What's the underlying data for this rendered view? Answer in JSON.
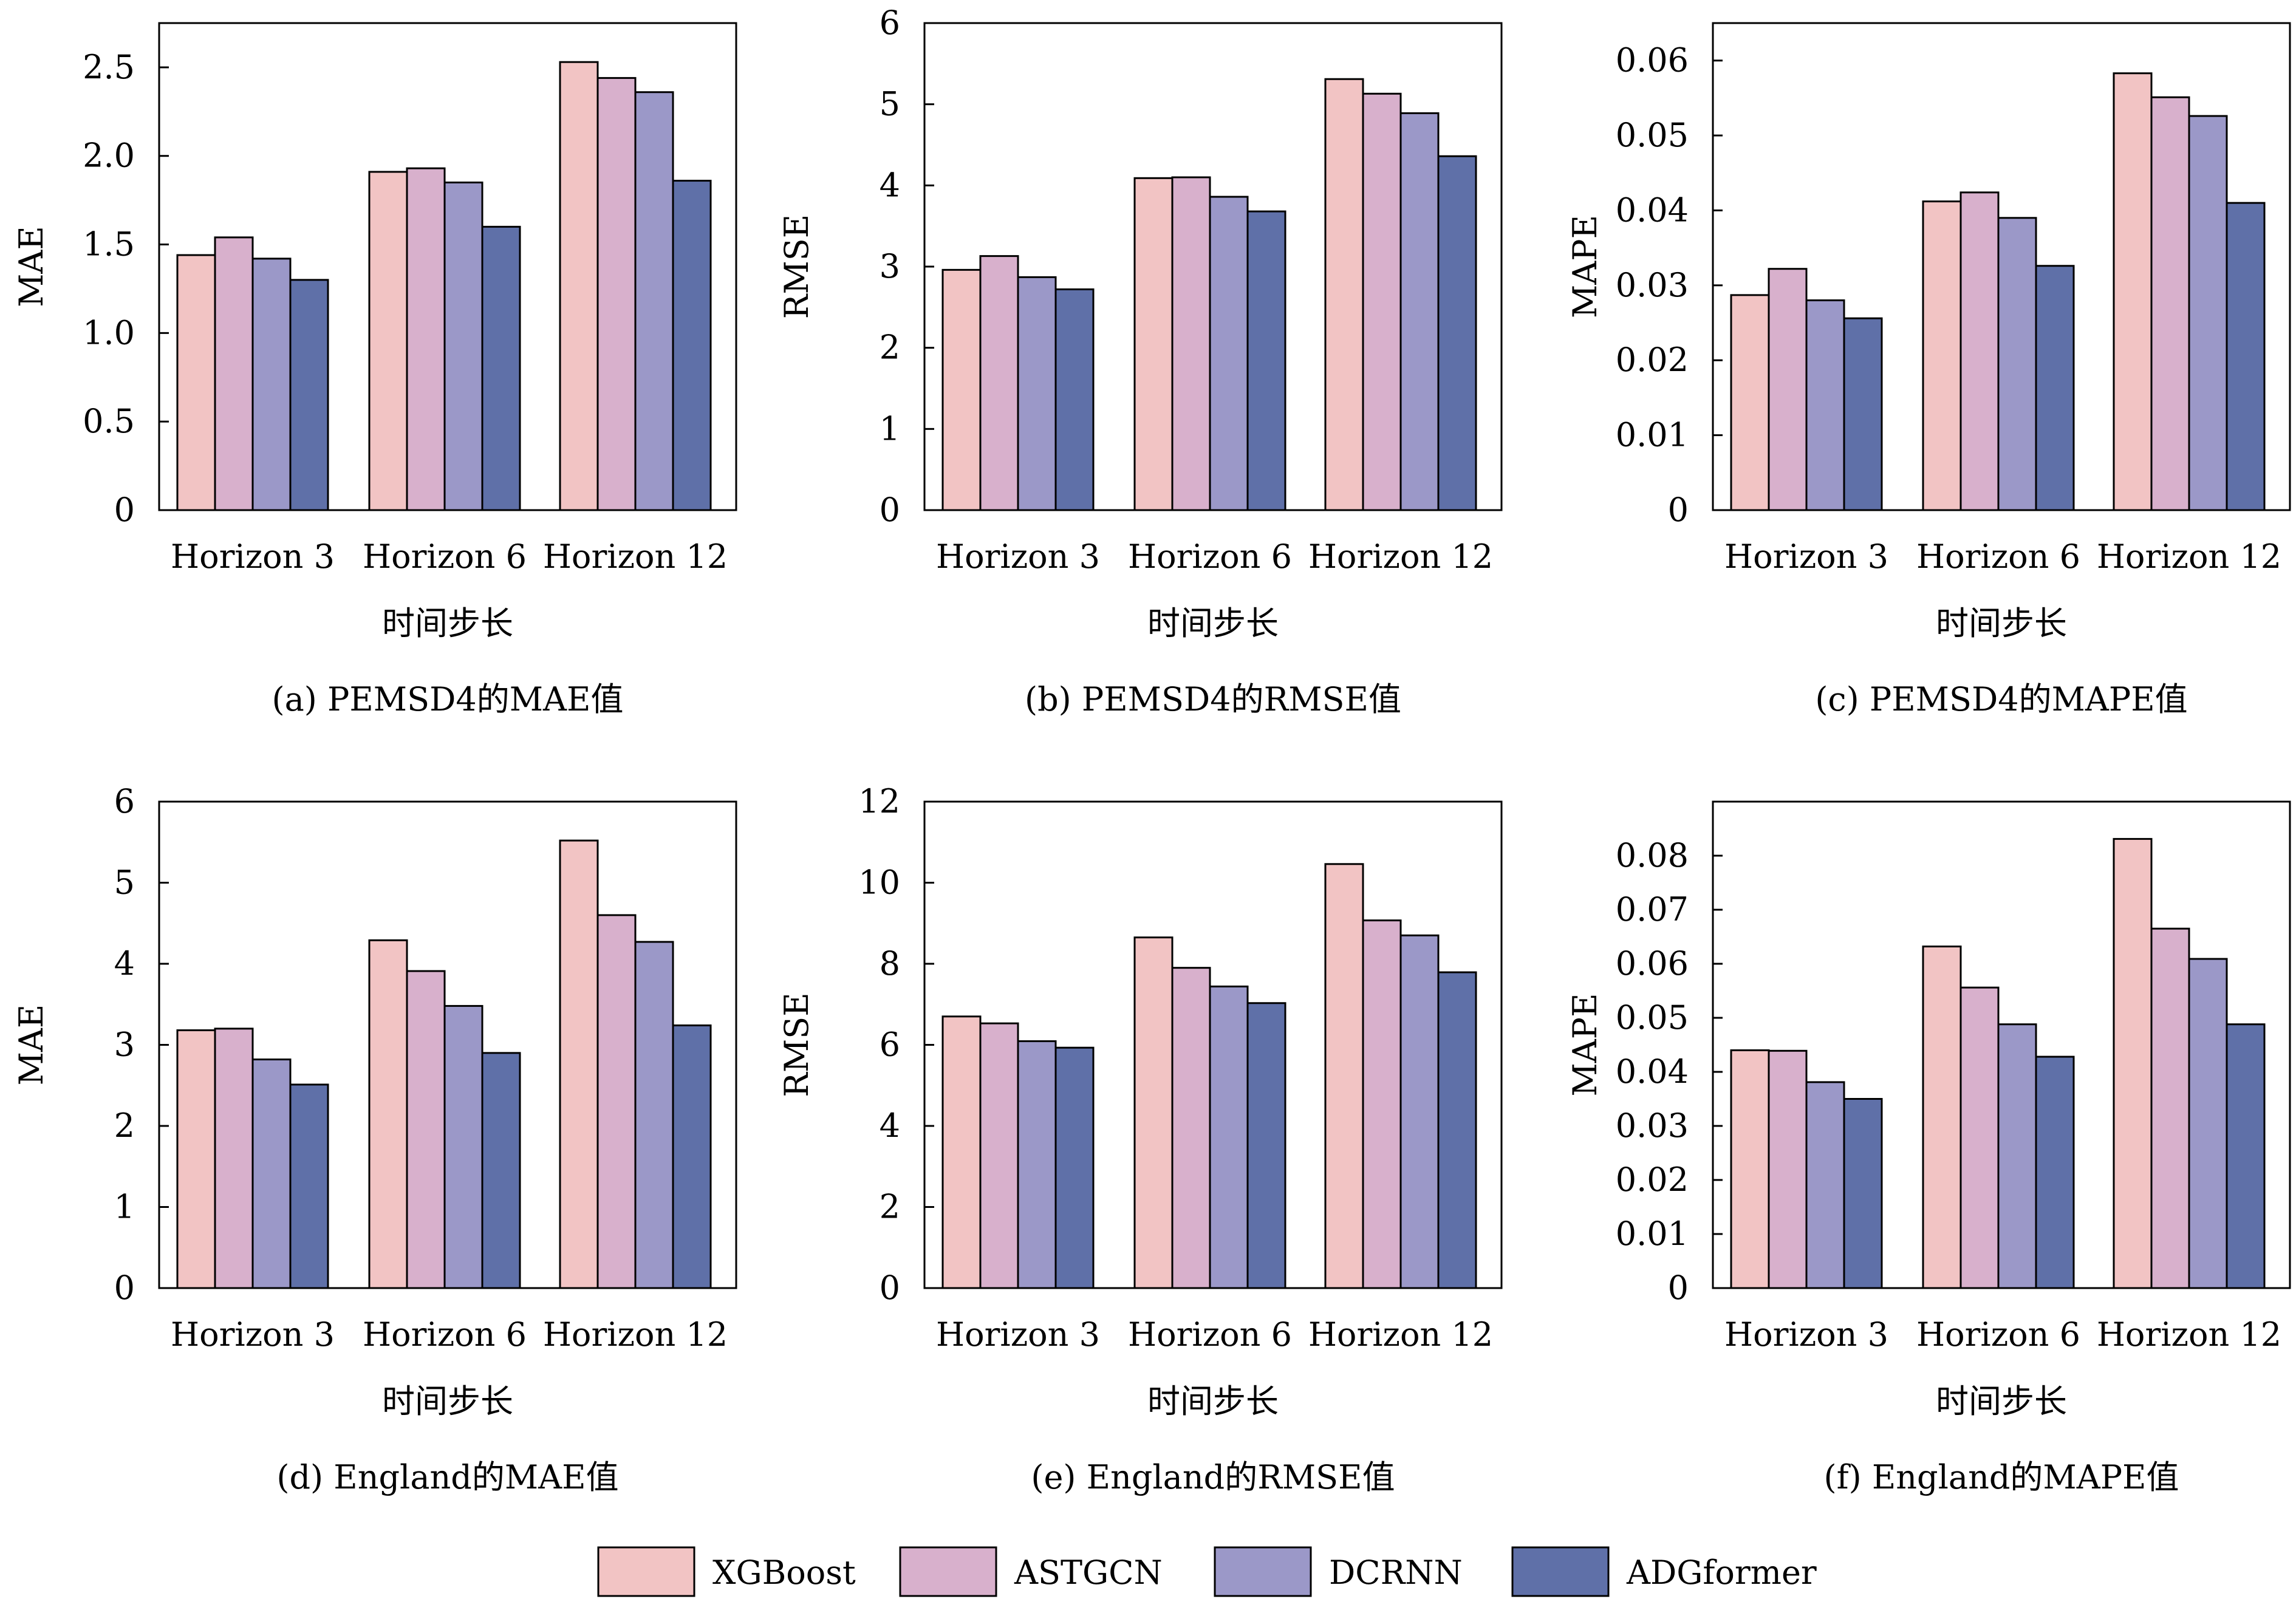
{
  "colors": [
    "#f2c4c4",
    "#d8b0cc",
    "#9b98c8",
    "#5f70a8"
  ],
  "legend": [
    "XGBoost",
    "ASTGCN",
    "DCRNN",
    "ADGformer"
  ],
  "chart_data": [
    {
      "type": "bar",
      "title": "",
      "caption": "(a) PEMSD4的MAE值",
      "xlabel": "时间步长",
      "ylabel": "MAE",
      "categories": [
        "Horizon 3",
        "Horizon 6",
        "Horizon 12"
      ],
      "ylim": [
        0,
        2.75
      ],
      "yticks": [
        0,
        0.5,
        1.0,
        1.5,
        2.0,
        2.5
      ],
      "ytick_labels": [
        "0",
        "0.5",
        "1.0",
        "1.5",
        "2.0",
        "2.5"
      ],
      "series": [
        {
          "name": "XGBoost",
          "values": [
            1.44,
            1.91,
            2.53
          ]
        },
        {
          "name": "ASTGCN",
          "values": [
            1.54,
            1.93,
            2.44
          ]
        },
        {
          "name": "DCRNN",
          "values": [
            1.42,
            1.85,
            2.36
          ]
        },
        {
          "name": "ADGformer",
          "values": [
            1.3,
            1.6,
            1.86
          ]
        }
      ]
    },
    {
      "type": "bar",
      "title": "",
      "caption": "(b) PEMSD4的RMSE值",
      "xlabel": "时间步长",
      "ylabel": "RMSE",
      "categories": [
        "Horizon 3",
        "Horizon 6",
        "Horizon 12"
      ],
      "ylim": [
        0,
        6
      ],
      "yticks": [
        0,
        1,
        2,
        3,
        4,
        5,
        6
      ],
      "ytick_labels": [
        "0",
        "1",
        "2",
        "3",
        "4",
        "5",
        "6"
      ],
      "series": [
        {
          "name": "XGBoost",
          "values": [
            2.96,
            4.09,
            5.31
          ]
        },
        {
          "name": "ASTGCN",
          "values": [
            3.13,
            4.1,
            5.13
          ]
        },
        {
          "name": "DCRNN",
          "values": [
            2.87,
            3.86,
            4.89
          ]
        },
        {
          "name": "ADGformer",
          "values": [
            2.72,
            3.68,
            4.36
          ]
        }
      ]
    },
    {
      "type": "bar",
      "title": "",
      "caption": "(c) PEMSD4的MAPE值",
      "xlabel": "时间步长",
      "ylabel": "MAPE",
      "categories": [
        "Horizon 3",
        "Horizon 6",
        "Horizon 12"
      ],
      "ylim": [
        0,
        0.065
      ],
      "yticks": [
        0,
        0.01,
        0.02,
        0.03,
        0.04,
        0.05,
        0.06
      ],
      "ytick_labels": [
        "0",
        "0.01",
        "0.02",
        "0.03",
        "0.04",
        "0.05",
        "0.06"
      ],
      "series": [
        {
          "name": "XGBoost",
          "values": [
            0.0287,
            0.0412,
            0.0583
          ]
        },
        {
          "name": "ASTGCN",
          "values": [
            0.0322,
            0.0424,
            0.0551
          ]
        },
        {
          "name": "DCRNN",
          "values": [
            0.028,
            0.039,
            0.0526
          ]
        },
        {
          "name": "ADGformer",
          "values": [
            0.0256,
            0.0326,
            0.041
          ]
        }
      ]
    },
    {
      "type": "bar",
      "title": "",
      "caption": "(d) England的MAE值",
      "xlabel": "时间步长",
      "ylabel": "MAE",
      "categories": [
        "Horizon 3",
        "Horizon 6",
        "Horizon 12"
      ],
      "ylim": [
        0,
        6
      ],
      "yticks": [
        0,
        1,
        2,
        3,
        4,
        5,
        6
      ],
      "ytick_labels": [
        "0",
        "1",
        "2",
        "3",
        "4",
        "5",
        "6"
      ],
      "series": [
        {
          "name": "XGBoost",
          "values": [
            3.18,
            4.29,
            5.52
          ]
        },
        {
          "name": "ASTGCN",
          "values": [
            3.2,
            3.91,
            4.6
          ]
        },
        {
          "name": "DCRNN",
          "values": [
            2.82,
            3.48,
            4.27
          ]
        },
        {
          "name": "ADGformer",
          "values": [
            2.51,
            2.9,
            3.24
          ]
        }
      ]
    },
    {
      "type": "bar",
      "title": "",
      "caption": "(e) England的RMSE值",
      "xlabel": "时间步长",
      "ylabel": "RMSE",
      "categories": [
        "Horizon 3",
        "Horizon 6",
        "Horizon 12"
      ],
      "ylim": [
        0,
        12
      ],
      "yticks": [
        0,
        2,
        4,
        6,
        8,
        10,
        12
      ],
      "ytick_labels": [
        "0",
        "2",
        "4",
        "6",
        "8",
        "10",
        "12"
      ],
      "series": [
        {
          "name": "XGBoost",
          "values": [
            6.7,
            8.65,
            10.46
          ]
        },
        {
          "name": "ASTGCN",
          "values": [
            6.53,
            7.9,
            9.07
          ]
        },
        {
          "name": "DCRNN",
          "values": [
            6.09,
            7.44,
            8.7
          ]
        },
        {
          "name": "ADGformer",
          "values": [
            5.93,
            7.03,
            7.79
          ]
        }
      ]
    },
    {
      "type": "bar",
      "title": "",
      "caption": "(f) England的MAPE值",
      "xlabel": "时间步长",
      "ylabel": "MAPE",
      "categories": [
        "Horizon 3",
        "Horizon 6",
        "Horizon 12"
      ],
      "ylim": [
        0,
        0.09
      ],
      "yticks": [
        0,
        0.01,
        0.02,
        0.03,
        0.04,
        0.05,
        0.06,
        0.07,
        0.08
      ],
      "ytick_labels": [
        "0",
        "0.01",
        "0.02",
        "0.03",
        "0.04",
        "0.05",
        "0.06",
        "0.07",
        "0.08"
      ],
      "series": [
        {
          "name": "XGBoost",
          "values": [
            0.044,
            0.0632,
            0.0831
          ]
        },
        {
          "name": "ASTGCN",
          "values": [
            0.0439,
            0.0556,
            0.0665
          ]
        },
        {
          "name": "DCRNN",
          "values": [
            0.0381,
            0.0488,
            0.0609
          ]
        },
        {
          "name": "ADGformer",
          "values": [
            0.035,
            0.0428,
            0.0488
          ]
        }
      ]
    }
  ]
}
